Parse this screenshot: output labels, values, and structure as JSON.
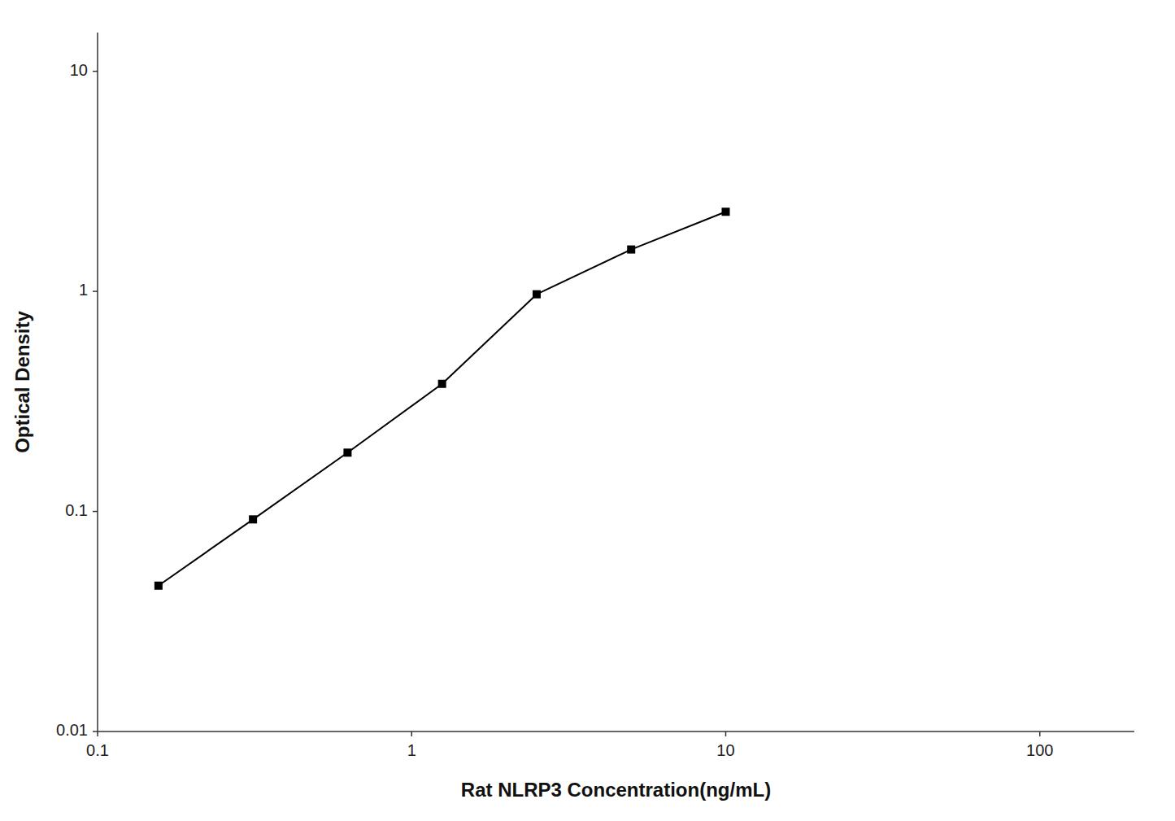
{
  "chart_data": {
    "type": "line",
    "xlabel": "Rat NLRP3 Concentration(ng/mL)",
    "ylabel": "Optical Density",
    "x": [
      0.15625,
      0.3125,
      0.625,
      1.25,
      2.5,
      5.0,
      10.0
    ],
    "values": [
      0.046,
      0.092,
      0.185,
      0.38,
      0.97,
      1.55,
      2.3
    ],
    "xlim": [
      0.1,
      200
    ],
    "ylim": [
      0.01,
      15
    ],
    "xticks": [
      0.1,
      1,
      10,
      100
    ],
    "yticks": [
      0.01,
      0.1,
      1,
      10
    ],
    "log": true,
    "grid": false,
    "color": "#000000",
    "marker": "square"
  }
}
